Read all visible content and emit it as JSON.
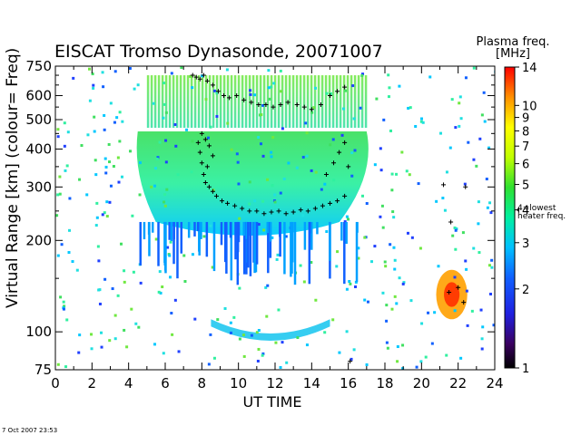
{
  "chart_data": {
    "type": "heatmap",
    "title": "EISCAT Tromso Dynasonde,  20071007",
    "xlabel": "UT TIME",
    "ylabel": "Virtual Range [km]   (colour= Freq)",
    "x_ticks": [
      0,
      2,
      4,
      6,
      8,
      10,
      12,
      14,
      16,
      18,
      20,
      22,
      24
    ],
    "y_ticks": [
      75,
      100,
      200,
      300,
      400,
      500,
      600,
      750
    ],
    "y_tick_labels": [
      "75",
      "100",
      "200",
      "300",
      "400",
      "500",
      "600",
      "750"
    ],
    "xlim": [
      0,
      24
    ],
    "ylim": [
      75,
      750
    ],
    "y_scale": "log",
    "colorbar": {
      "title": "Plasma freq. [MHz]",
      "ticks": [
        1,
        2,
        3,
        4,
        5,
        6,
        7,
        8,
        9,
        10,
        14
      ],
      "range": [
        1,
        14
      ],
      "scale": "log",
      "note": "4=lowest heater freq.",
      "note_value": 4
    },
    "layers": [
      {
        "kind": "F-region",
        "x": [
          4.5,
          17
        ],
        "y": [
          230,
          470
        ],
        "peak_freq": 6
      },
      {
        "kind": "F-region-upper",
        "x": [
          5,
          17
        ],
        "y": [
          470,
          700
        ],
        "peak_freq": 5
      },
      {
        "kind": "E-region",
        "x": [
          8.5,
          15
        ],
        "y": [
          95,
          110
        ],
        "peak_freq": 3
      },
      {
        "kind": "sporadic",
        "x": [
          20.8,
          22.5
        ],
        "y": [
          110,
          160
        ],
        "peak_freq": 10
      }
    ],
    "crosses": [
      [
        7.5,
        700
      ],
      [
        7.7,
        690
      ],
      [
        7.9,
        680
      ],
      [
        8.1,
        700
      ],
      [
        8.3,
        670
      ],
      [
        8.6,
        650
      ],
      [
        8.9,
        620
      ],
      [
        9.2,
        600
      ],
      [
        9.5,
        590
      ],
      [
        9.9,
        600
      ],
      [
        10.3,
        580
      ],
      [
        10.7,
        570
      ],
      [
        11.1,
        560
      ],
      [
        11.5,
        560
      ],
      [
        11.9,
        550
      ],
      [
        12.3,
        560
      ],
      [
        12.7,
        570
      ],
      [
        13.2,
        560
      ],
      [
        13.6,
        550
      ],
      [
        14.0,
        540
      ],
      [
        14.5,
        560
      ],
      [
        15.0,
        600
      ],
      [
        15.4,
        620
      ],
      [
        15.8,
        640
      ],
      [
        7.8,
        420
      ],
      [
        7.9,
        390
      ],
      [
        8.0,
        360
      ],
      [
        8.1,
        330
      ],
      [
        8.2,
        310
      ],
      [
        8.4,
        300
      ],
      [
        8.6,
        290
      ],
      [
        8.8,
        280
      ],
      [
        9.1,
        270
      ],
      [
        9.4,
        265
      ],
      [
        9.8,
        260
      ],
      [
        10.2,
        255
      ],
      [
        10.6,
        250
      ],
      [
        11.0,
        250
      ],
      [
        11.4,
        245
      ],
      [
        11.8,
        248
      ],
      [
        12.2,
        250
      ],
      [
        12.6,
        245
      ],
      [
        13.0,
        248
      ],
      [
        13.4,
        252
      ],
      [
        13.8,
        250
      ],
      [
        14.2,
        255
      ],
      [
        14.6,
        260
      ],
      [
        15.0,
        265
      ],
      [
        15.4,
        270
      ],
      [
        15.8,
        280
      ],
      [
        8.0,
        450
      ],
      [
        8.2,
        430
      ],
      [
        8.4,
        410
      ],
      [
        8.6,
        380
      ],
      [
        8.3,
        350
      ],
      [
        14.8,
        330
      ],
      [
        15.2,
        360
      ],
      [
        15.5,
        390
      ],
      [
        15.8,
        420
      ],
      [
        16.0,
        350
      ],
      [
        16.1,
        80
      ],
      [
        21.5,
        135
      ],
      [
        22.0,
        140
      ],
      [
        22.3,
        125
      ],
      [
        21.2,
        305
      ],
      [
        22.4,
        300
      ],
      [
        21.6,
        230
      ]
    ]
  }
}
